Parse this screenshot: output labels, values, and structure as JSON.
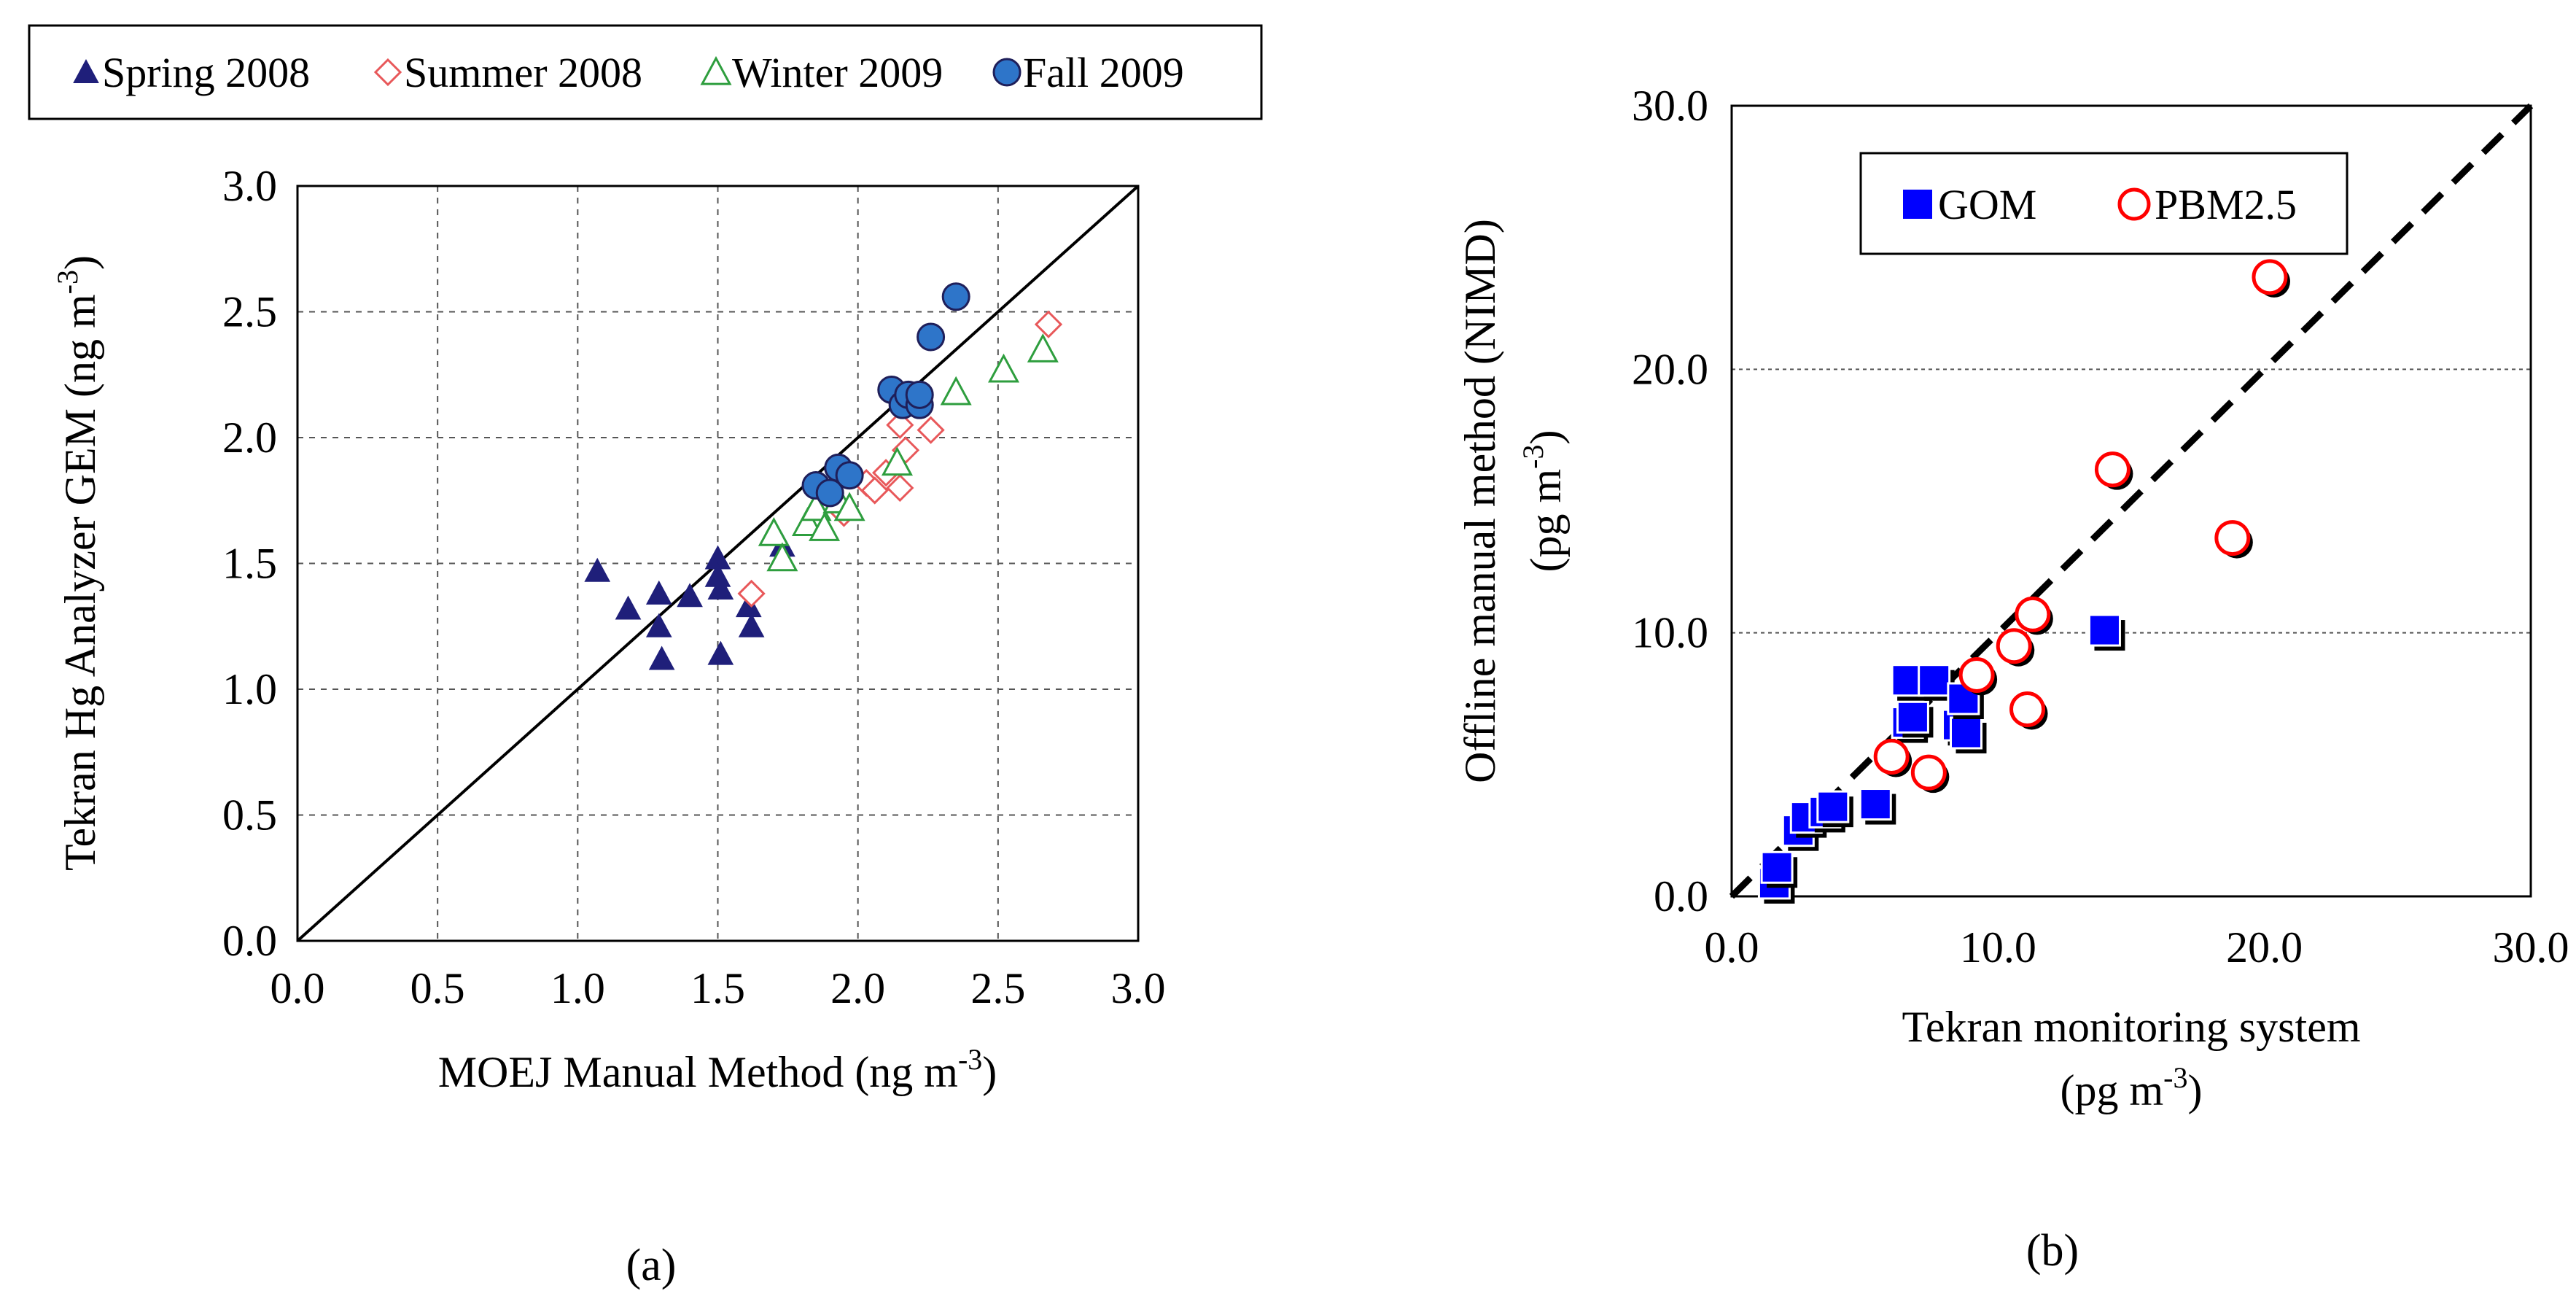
{
  "chart_data": [
    {
      "panel": "(a)",
      "type": "scatter",
      "xlabel": {
        "main": "MOEJ Manual Method (ng m",
        "sup": "-3",
        "tail": ")"
      },
      "ylabel": {
        "main": "Tekran Hg Analyzer GEM (ng m",
        "sup": "-3",
        "tail": ")"
      },
      "xlim": [
        0,
        3
      ],
      "ylim": [
        0,
        3
      ],
      "xticks": [
        "0.0",
        "0.5",
        "1.0",
        "1.5",
        "2.0",
        "2.5",
        "3.0"
      ],
      "yticks": [
        "0.0",
        "0.5",
        "1.0",
        "1.5",
        "2.0",
        "2.5",
        "3.0"
      ],
      "grid": "both, dashed",
      "reference_line": "1:1 solid",
      "legend_position": "top, outside plot",
      "series": [
        {
          "name": "Spring 2008",
          "marker": "triangle-filled",
          "color": "#1F1F7A",
          "points": [
            [
              1.07,
              1.47
            ],
            [
              1.18,
              1.32
            ],
            [
              1.29,
              1.38
            ],
            [
              1.29,
              1.25
            ],
            [
              1.3,
              1.12
            ],
            [
              1.4,
              1.37
            ],
            [
              1.5,
              1.52
            ],
            [
              1.5,
              1.45
            ],
            [
              1.51,
              1.4
            ],
            [
              1.51,
              1.14
            ],
            [
              1.61,
              1.33
            ],
            [
              1.62,
              1.25
            ],
            [
              1.73,
              1.57
            ]
          ]
        },
        {
          "name": "Summer 2008",
          "marker": "diamond-open",
          "color": "#E8585A",
          "points": [
            [
              1.62,
              1.38
            ],
            [
              1.95,
              1.7
            ],
            [
              2.03,
              1.82
            ],
            [
              2.06,
              1.79
            ],
            [
              2.1,
              1.86
            ],
            [
              2.15,
              1.8
            ],
            [
              2.17,
              1.95
            ],
            [
              2.15,
              2.05
            ],
            [
              2.26,
              2.03
            ],
            [
              2.68,
              2.45
            ]
          ]
        },
        {
          "name": "Winter 2009",
          "marker": "triangle-open",
          "color": "#2E9E3E",
          "points": [
            [
              1.7,
              1.62
            ],
            [
              1.73,
              1.52
            ],
            [
              1.82,
              1.66
            ],
            [
              1.85,
              1.72
            ],
            [
              1.88,
              1.64
            ],
            [
              1.93,
              1.75
            ],
            [
              1.97,
              1.72
            ],
            [
              2.14,
              1.9
            ],
            [
              2.35,
              2.18
            ],
            [
              2.52,
              2.27
            ],
            [
              2.66,
              2.35
            ]
          ]
        },
        {
          "name": "Fall 2009",
          "marker": "circle-filled",
          "color": "#2E75C9",
          "points": [
            [
              1.85,
              1.81
            ],
            [
              1.9,
              1.78
            ],
            [
              1.93,
              1.88
            ],
            [
              1.97,
              1.85
            ],
            [
              2.12,
              2.19
            ],
            [
              2.16,
              2.13
            ],
            [
              2.18,
              2.17
            ],
            [
              2.22,
              2.13
            ],
            [
              2.22,
              2.17
            ],
            [
              2.26,
              2.4
            ],
            [
              2.35,
              2.56
            ]
          ]
        }
      ]
    },
    {
      "panel": "(b)",
      "type": "scatter",
      "xlabel": {
        "line1": "Tekran monitoring system",
        "line2_main": "(pg m",
        "sup": "-3",
        "tail": ")"
      },
      "ylabel": {
        "line1": "Offline manual method (NIMD)",
        "line2_main": "(pg m",
        "sup": "-3",
        "tail": ")"
      },
      "xlim": [
        0,
        30
      ],
      "ylim": [
        0,
        30
      ],
      "xticks": [
        "0.0",
        "10.0",
        "20.0",
        "30.0"
      ],
      "yticks": [
        "0.0",
        "10.0",
        "20.0",
        "30.0"
      ],
      "grid": "horizontal, dashed",
      "reference_line": "1:1 dashed",
      "legend_position": "top-left, inside plot",
      "series": [
        {
          "name": "GOM",
          "marker": "square-filled-shadow",
          "color": "#0000FF",
          "points": [
            [
              1.6,
              0.5
            ],
            [
              1.7,
              1.1
            ],
            [
              2.5,
              2.5
            ],
            [
              2.8,
              3.0
            ],
            [
              3.5,
              3.2
            ],
            [
              3.8,
              3.4
            ],
            [
              5.4,
              3.5
            ],
            [
              6.6,
              6.6
            ],
            [
              6.8,
              6.8
            ],
            [
              6.6,
              8.2
            ],
            [
              7.6,
              8.2
            ],
            [
              8.5,
              6.5
            ],
            [
              8.8,
              6.2
            ],
            [
              8.7,
              7.5
            ],
            [
              14.0,
              10.1
            ]
          ]
        },
        {
          "name": "PBM2.5",
          "marker": "circle-open-shadow",
          "color": "#FF0000",
          "points": [
            [
              6.0,
              5.3
            ],
            [
              7.4,
              4.7
            ],
            [
              9.2,
              8.4
            ],
            [
              10.6,
              9.5
            ],
            [
              11.1,
              7.1
            ],
            [
              11.3,
              10.7
            ],
            [
              14.3,
              16.2
            ],
            [
              18.8,
              13.6
            ],
            [
              20.2,
              23.5
            ]
          ]
        }
      ]
    }
  ],
  "panel_labels": {
    "a": "(a)",
    "b": "(b)"
  }
}
